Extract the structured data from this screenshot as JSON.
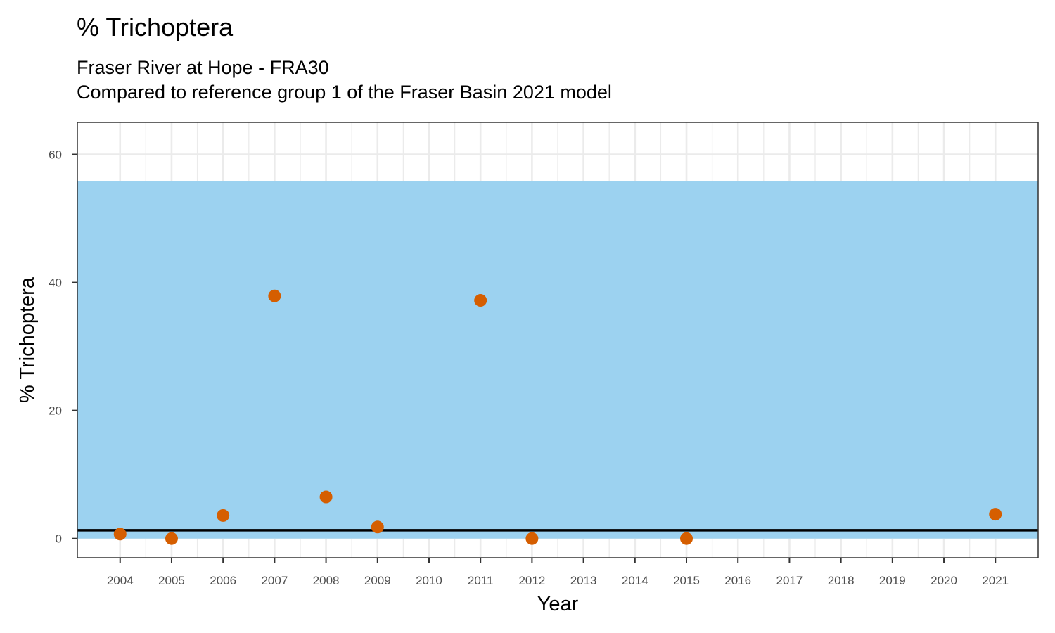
{
  "chart_data": {
    "type": "scatter",
    "title": "% Trichoptera",
    "subtitle_lines": [
      "Fraser River at Hope - FRA30",
      "Compared to reference group 1 of the Fraser Basin 2021 model"
    ],
    "xlabel": "Year",
    "ylabel": "% Trichoptera",
    "x_ticks": [
      2004,
      2005,
      2006,
      2007,
      2008,
      2009,
      2010,
      2011,
      2012,
      2013,
      2014,
      2015,
      2016,
      2017,
      2018,
      2019,
      2020,
      2021
    ],
    "y_ticks": [
      0,
      20,
      40,
      60
    ],
    "xlim": [
      2003.17,
      2021.83
    ],
    "ylim": [
      -3,
      65
    ],
    "grid": true,
    "reference_band": {
      "ymin": 0,
      "ymax": 55.8,
      "color": "#99d1f0"
    },
    "reference_line": {
      "y": 1.3,
      "color": "#000000"
    },
    "point_color": "#d55e00",
    "series": [
      {
        "x": [
          2004,
          2005,
          2006,
          2007,
          2008,
          2009,
          2011,
          2012,
          2015,
          2021
        ],
        "y": [
          0.7,
          0.0,
          3.6,
          37.9,
          6.5,
          1.8,
          37.2,
          0.0,
          0.0,
          3.8
        ]
      }
    ]
  }
}
